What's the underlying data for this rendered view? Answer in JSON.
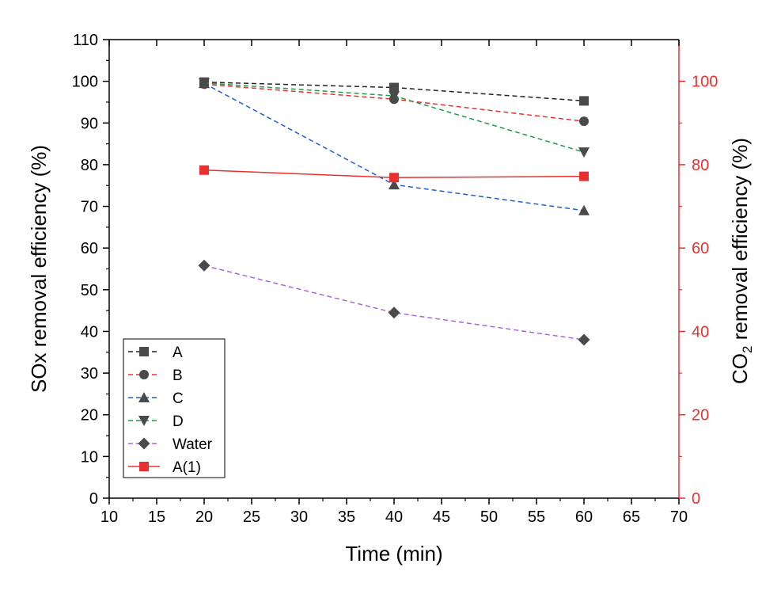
{
  "chart_data": {
    "type": "line",
    "x": [
      20,
      40,
      60
    ],
    "xlabel": "Time (min)",
    "ylabel": "SOx removal efficiency (%)",
    "y2label_prefix": "CO",
    "y2label_sub": "2",
    "y2label_suffix": "  removal efficiency (%)",
    "xlim": [
      10,
      70
    ],
    "ylim": [
      0,
      110
    ],
    "y2lim": [
      0,
      110
    ],
    "x_ticks": [
      10,
      15,
      20,
      25,
      30,
      35,
      40,
      45,
      50,
      55,
      60,
      65,
      70
    ],
    "y_ticks": [
      0,
      10,
      20,
      30,
      40,
      50,
      60,
      70,
      80,
      90,
      100,
      110
    ],
    "y2_ticks": [
      0,
      20,
      40,
      60,
      80,
      100
    ],
    "right_axis_color": "#e8312f",
    "legend_position": "bottom-left",
    "series": [
      {
        "name": "A",
        "axis": "left",
        "values": [
          99.8,
          98.5,
          95.3
        ],
        "color": "#222222",
        "marker": "square",
        "marker_color": "#4a4a4a",
        "dash": true
      },
      {
        "name": "B",
        "axis": "left",
        "values": [
          99.3,
          95.7,
          90.4
        ],
        "color": "#e8312f",
        "marker": "circle",
        "marker_color": "#4a4a4a",
        "dash": true
      },
      {
        "name": "C",
        "axis": "left",
        "values": [
          99.5,
          75.2,
          69.0
        ],
        "color": "#1f5fcf",
        "marker": "triangle-up",
        "marker_color": "#4a4a4a",
        "dash": true
      },
      {
        "name": "D",
        "axis": "left",
        "values": [
          99.6,
          96.5,
          83.0
        ],
        "color": "#1f9a4a",
        "marker": "triangle-down",
        "marker_color": "#4a4a4a",
        "dash": true
      },
      {
        "name": "Water",
        "axis": "left",
        "values": [
          55.8,
          44.5,
          38.0
        ],
        "color": "#a966dc",
        "marker": "diamond",
        "marker_color": "#4a4a4a",
        "dash": true
      },
      {
        "name": "A(1)",
        "axis": "right",
        "values": [
          78.7,
          76.9,
          77.2
        ],
        "color": "#e8312f",
        "marker": "square",
        "marker_color": "#e8312f",
        "dash": false
      }
    ]
  }
}
